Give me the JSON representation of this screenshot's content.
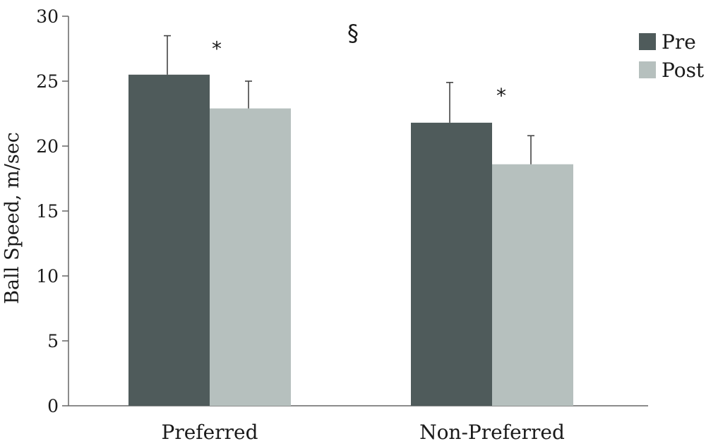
{
  "chart_data": {
    "type": "bar",
    "title": "",
    "xlabel": "",
    "ylabel": "Ball Speed, m/sec",
    "ylim": [
      0,
      30
    ],
    "yticks": [
      0,
      5,
      10,
      15,
      20,
      25,
      30
    ],
    "grid": false,
    "legend_position": "top-right",
    "categories": [
      "Preferred",
      "Non-Preferred"
    ],
    "series": [
      {
        "name": "Pre",
        "color": "#4f5b5b",
        "values": [
          25.5,
          21.8
        ],
        "errors": [
          3.0,
          3.1
        ]
      },
      {
        "name": "Post",
        "color": "#b6c0be",
        "values": [
          22.9,
          18.6
        ],
        "errors": [
          2.1,
          2.2
        ]
      }
    ],
    "annotations": {
      "section_mark": "§",
      "significance": [
        "*",
        "*"
      ]
    }
  }
}
